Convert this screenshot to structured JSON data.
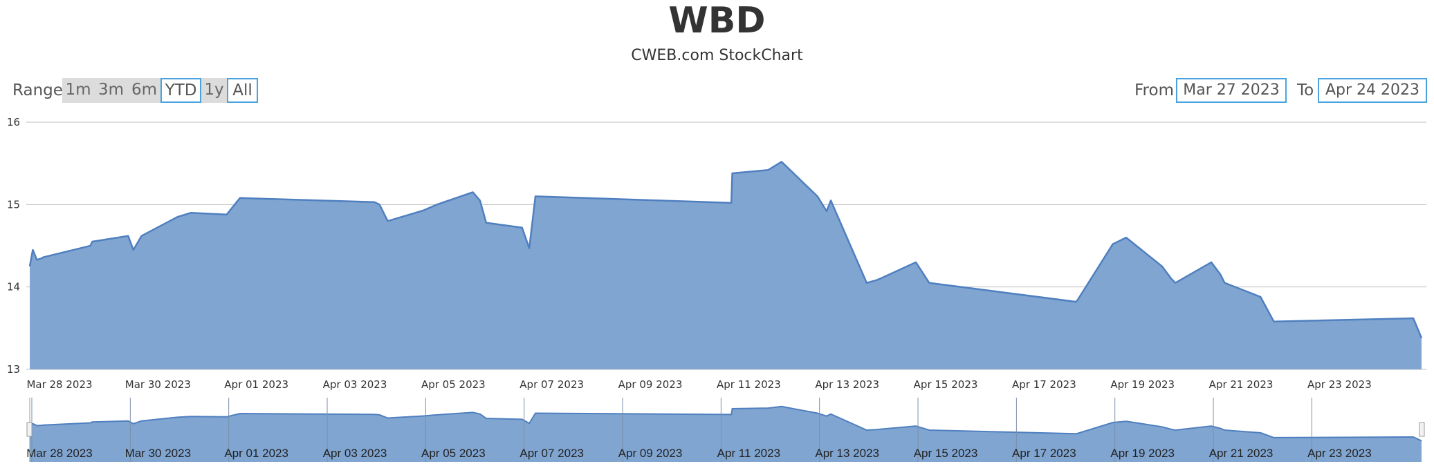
{
  "header": {
    "title": "WBD",
    "subtitle": "CWEB.com StockChart"
  },
  "range_selector": {
    "label": "Range",
    "buttons": [
      {
        "label": "1m",
        "selected": false
      },
      {
        "label": "3m",
        "selected": false
      },
      {
        "label": "6m",
        "selected": false
      },
      {
        "label": "YTD",
        "selected": true
      },
      {
        "label": "1y",
        "selected": false
      },
      {
        "label": "All",
        "selected": true
      }
    ],
    "from_label": "From",
    "from_value": "Mar 27 2023",
    "to_label": "To",
    "to_value": "Apr 24 2023"
  },
  "colors": {
    "area_fill": "#80a5d1",
    "line": "#4f7fbf",
    "grid": "#bdbdbd",
    "selected_border": "#4aa3df",
    "button_bg": "#dcdcdc"
  },
  "chart_data": {
    "type": "area",
    "x_label_format": "date",
    "ylim": [
      13,
      16
    ],
    "y_ticks": [
      "13",
      "14",
      "15",
      "16"
    ],
    "x_range": [
      "2023-03-27T09:30",
      "2023-04-24T16:00"
    ],
    "x_ticks": [
      "Mar 28 2023",
      "Mar 30 2023",
      "Apr 01 2023",
      "Apr 03 2023",
      "Apr 05 2023",
      "Apr 07 2023",
      "Apr 09 2023",
      "Apr 11 2023",
      "Apr 13 2023",
      "Apr 15 2023",
      "Apr 17 2023",
      "Apr 19 2023",
      "Apr 21 2023",
      "Apr 23 2023"
    ],
    "navigator_ticks": [
      "Mar 28 2023",
      "Mar 30 2023",
      "Apr 01 2023",
      "Apr 03 2023",
      "Apr 05 2023",
      "Apr 07 2023",
      "Apr 09 2023",
      "Apr 11 2023",
      "Apr 13 2023",
      "Apr 15 2023",
      "Apr 17 2023",
      "Apr 19 2023",
      "Apr 21 2023",
      "Apr 23 2023"
    ],
    "grid": true,
    "navigator": true,
    "series": [
      {
        "x": [
          "2023-03-27T09:30",
          "2023-03-27T11:00",
          "2023-03-27T13:00",
          "2023-03-27T15:30",
          "2023-03-27T16:00",
          "2023-03-28T15:00",
          "2023-03-28T16:00",
          "2023-03-29T09:30",
          "2023-03-29T12:00",
          "2023-03-29T16:00",
          "2023-03-30T09:30",
          "2023-03-30T16:00",
          "2023-03-31T09:30",
          "2023-03-31T16:00",
          "2023-04-03T09:30",
          "2023-04-03T12:00",
          "2023-04-03T16:00",
          "2023-04-04T09:30",
          "2023-04-04T16:00",
          "2023-04-05T09:30",
          "2023-04-05T13:00",
          "2023-04-05T16:00",
          "2023-04-06T09:30",
          "2023-04-06T13:00",
          "2023-04-06T16:00",
          "2023-04-10T15:30",
          "2023-04-10T16:00",
          "2023-04-11T09:30",
          "2023-04-11T16:00",
          "2023-04-12T09:30",
          "2023-04-12T14:00",
          "2023-04-12T16:00",
          "2023-04-13T09:30",
          "2023-04-13T14:00",
          "2023-04-13T16:00",
          "2023-04-14T09:30",
          "2023-04-14T16:00",
          "2023-04-17T15:30",
          "2023-04-17T16:00",
          "2023-04-18T09:30",
          "2023-04-18T16:00",
          "2023-04-19T09:30",
          "2023-04-19T14:00",
          "2023-04-19T16:00",
          "2023-04-20T09:30",
          "2023-04-20T14:00",
          "2023-04-20T16:00",
          "2023-04-21T09:30",
          "2023-04-21T16:00",
          "2023-04-24T12:00",
          "2023-04-24T16:00"
        ],
        "y": [
          14.25,
          14.45,
          14.33,
          14.35,
          14.36,
          14.5,
          14.55,
          14.62,
          14.45,
          14.62,
          14.85,
          14.9,
          14.88,
          15.08,
          15.03,
          15.0,
          14.8,
          14.93,
          15.0,
          15.15,
          15.05,
          14.78,
          14.72,
          14.47,
          15.1,
          15.02,
          15.38,
          15.42,
          15.52,
          15.1,
          14.92,
          15.05,
          14.05,
          14.08,
          14.1,
          14.3,
          14.05,
          13.82,
          13.83,
          14.52,
          14.6,
          14.25,
          14.1,
          14.05,
          14.3,
          14.15,
          14.05,
          13.88,
          13.58,
          13.62,
          13.38
        ]
      }
    ]
  }
}
